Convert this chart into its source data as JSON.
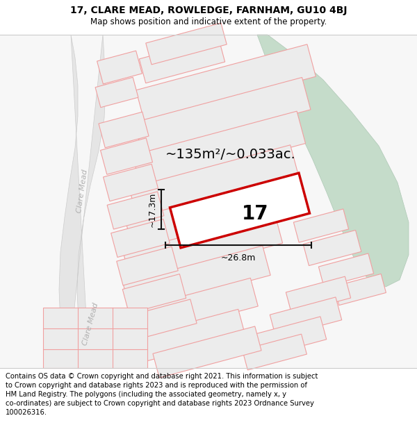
{
  "title_line1": "17, CLARE MEAD, ROWLEDGE, FARNHAM, GU10 4BJ",
  "title_line2": "Map shows position and indicative extent of the property.",
  "area_text": "~135m²/~0.033ac.",
  "label_17": "17",
  "dim_height": "~17.3m",
  "dim_width": "~26.8m",
  "footer_lines": [
    "Contains OS data © Crown copyright and database right 2021. This information is subject",
    "to Crown copyright and database rights 2023 and is reproduced with the permission of",
    "HM Land Registry. The polygons (including the associated geometry, namely x, y",
    "co-ordinates) are subject to Crown copyright and database rights 2023 Ordnance Survey",
    "100026316."
  ],
  "bg_color": "#ffffff",
  "map_bg": "#f7f7f7",
  "road_color": "#e5e5e5",
  "road_border_color": "#cccccc",
  "plot_fill": "#ececec",
  "plot_outline": "#f0a0a0",
  "highlight_color": "#cc0000",
  "green_fill": "#c5dcca",
  "green_border": "#aec8b5",
  "road_text_color": "#b0b0b0",
  "dim_color": "#111111",
  "title_fontsize": 10,
  "subtitle_fontsize": 8.5,
  "footer_fontsize": 7.2,
  "area_fontsize": 14,
  "label_fontsize": 20,
  "dim_fontsize": 9
}
